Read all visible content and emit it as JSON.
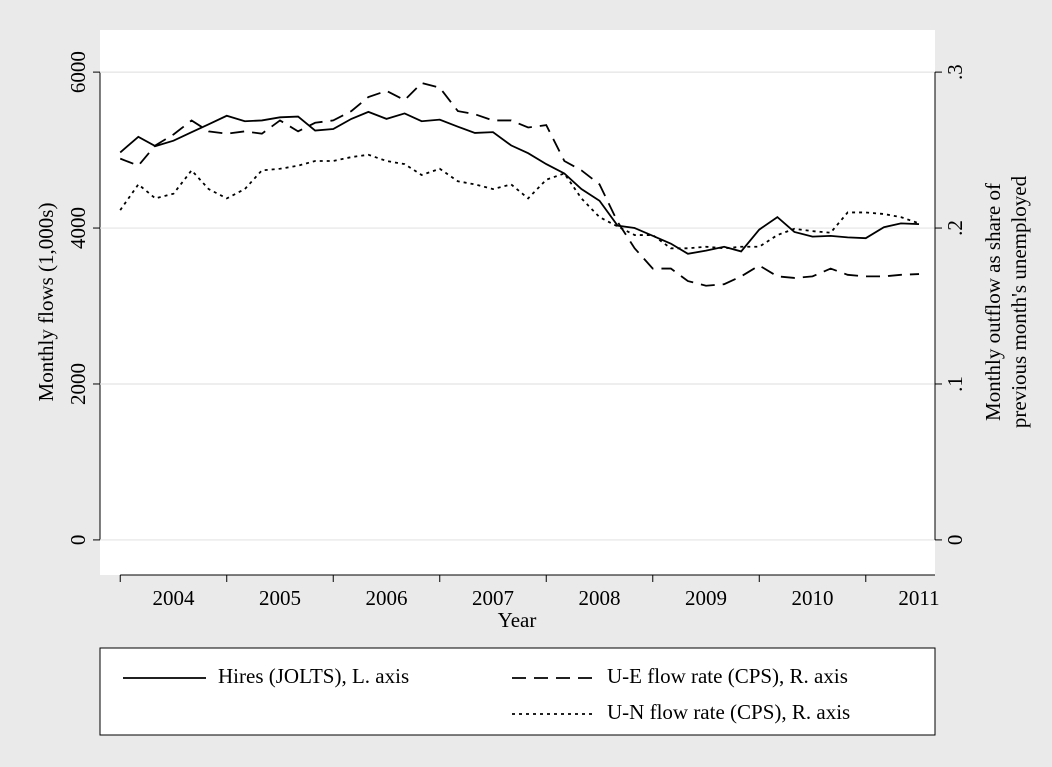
{
  "chart_data": {
    "type": "line",
    "x_label": "Year",
    "y_label": "Monthly flows (1,000s)",
    "y2_label": [
      "Monthly outflow as share of",
      "previous month's unemployed"
    ],
    "x": [
      2004,
      2004.17,
      2004.33,
      2004.5,
      2004.67,
      2004.83,
      2005,
      2005.17,
      2005.33,
      2005.5,
      2005.67,
      2005.83,
      2006,
      2006.17,
      2006.33,
      2006.5,
      2006.67,
      2006.83,
      2007,
      2007.17,
      2007.33,
      2007.5,
      2007.67,
      2007.83,
      2008,
      2008.17,
      2008.33,
      2008.5,
      2008.67,
      2008.83,
      2009,
      2009.17,
      2009.33,
      2009.5,
      2009.67,
      2009.83,
      2010,
      2010.17,
      2010.33,
      2010.5,
      2010.67,
      2010.83,
      2011,
      2011.17,
      2011.33,
      2011.5
    ],
    "series": [
      {
        "name": "Hires (JOLTS), L. axis",
        "color": "#000000",
        "style": "solid",
        "axis": "y",
        "values": [
          4970,
          5170,
          5050,
          5120,
          5230,
          5330,
          5440,
          5370,
          5380,
          5420,
          5430,
          5250,
          5270,
          5400,
          5490,
          5400,
          5470,
          5370,
          5390,
          5300,
          5220,
          5230,
          5060,
          4960,
          4820,
          4700,
          4500,
          4350,
          4030,
          4000,
          3900,
          3800,
          3670,
          3710,
          3760,
          3700,
          3980,
          4140,
          3950,
          3890,
          3900,
          3880,
          3870,
          4010,
          4060,
          4050
        ]
      },
      {
        "name": "U-E flow rate (CPS), R. axis",
        "color": "#000000",
        "style": "dashed",
        "axis": "y2",
        "values": [
          0.2445,
          0.24,
          0.253,
          0.26,
          0.269,
          0.262,
          0.2605,
          0.262,
          0.2605,
          0.269,
          0.262,
          0.2675,
          0.269,
          0.275,
          0.284,
          0.288,
          0.282,
          0.293,
          0.29,
          0.275,
          0.273,
          0.269,
          0.269,
          0.2645,
          0.266,
          0.243,
          0.237,
          0.228,
          0.204,
          0.187,
          0.174,
          0.174,
          0.166,
          0.163,
          0.164,
          0.169,
          0.176,
          0.169,
          0.168,
          0.169,
          0.174,
          0.17,
          0.169,
          0.169,
          0.17,
          0.1705
        ]
      },
      {
        "name": "U-N flow rate (CPS), R. axis",
        "color": "#000000",
        "style": "dotted",
        "axis": "y2",
        "values": [
          0.2115,
          0.228,
          0.219,
          0.222,
          0.237,
          0.225,
          0.219,
          0.225,
          0.237,
          0.238,
          0.24,
          0.243,
          0.243,
          0.2455,
          0.247,
          0.243,
          0.241,
          0.234,
          0.238,
          0.23,
          0.228,
          0.225,
          0.228,
          0.219,
          0.231,
          0.235,
          0.219,
          0.207,
          0.201,
          0.1955,
          0.1955,
          0.187,
          0.187,
          0.188,
          0.187,
          0.188,
          0.188,
          0.1955,
          0.1995,
          0.198,
          0.197,
          0.21,
          0.21,
          0.209,
          0.207,
          0.203
        ]
      }
    ],
    "xlim": [
      2003.81,
      2011.65
    ],
    "xticks": [
      {
        "value": 2004,
        "label": "2004"
      },
      {
        "value": 2005,
        "label": "2005"
      },
      {
        "value": 2006,
        "label": "2006"
      },
      {
        "value": 2007,
        "label": "2007"
      },
      {
        "value": 2008,
        "label": "2008"
      },
      {
        "value": 2009,
        "label": "2009"
      },
      {
        "value": 2010,
        "label": "2010"
      },
      {
        "value": 2011,
        "label": "2011"
      }
    ],
    "ylim": [
      -450,
      6540
    ],
    "yticks": [
      0,
      2000,
      4000,
      6000
    ],
    "y2lim": [
      -0.0225,
      0.327
    ],
    "y2ticks": [
      0,
      {
        "value": 0.1,
        "label": ".1"
      },
      {
        "value": 0.2,
        "label": ".2"
      },
      {
        "value": 0.3,
        "label": ".3"
      }
    ],
    "grid": true,
    "legend": "bottom"
  }
}
